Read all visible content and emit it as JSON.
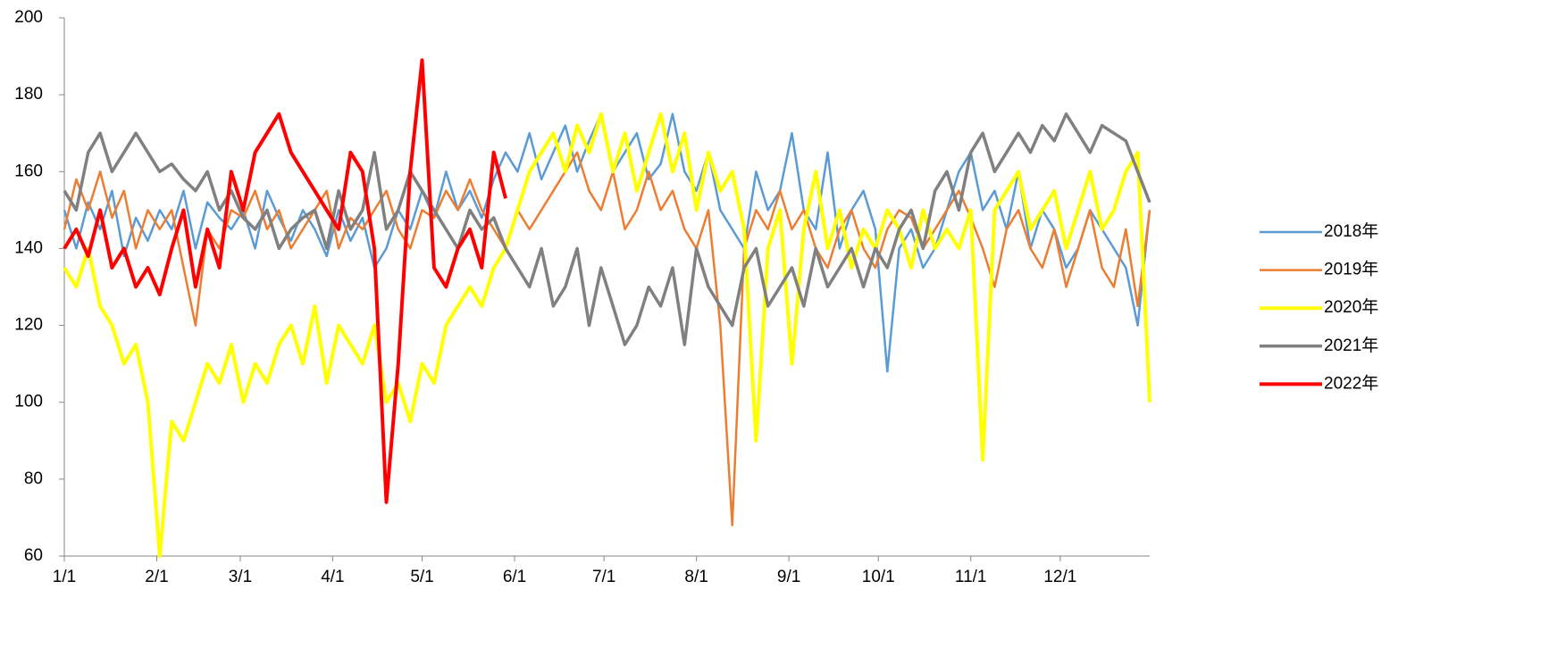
{
  "chart_data": {
    "type": "line",
    "x": [
      0,
      4,
      8,
      12,
      16,
      20,
      24,
      28,
      32,
      36,
      40,
      44,
      48,
      52,
      56,
      60,
      64,
      68,
      72,
      76,
      80,
      84,
      88,
      92,
      96,
      100,
      104,
      108,
      112,
      116,
      120,
      124,
      128,
      132,
      136,
      140,
      144,
      148,
      152,
      156,
      160,
      164,
      168,
      172,
      176,
      180,
      184,
      188,
      192,
      196,
      200,
      204,
      208,
      212,
      216,
      220,
      224,
      228,
      232,
      236,
      240,
      244,
      248,
      252,
      256,
      260,
      264,
      268,
      272,
      276,
      280,
      284,
      288,
      292,
      296,
      300,
      304,
      308,
      312,
      316,
      320,
      324,
      328,
      332,
      336,
      340,
      344,
      348,
      352,
      356,
      360,
      364
    ],
    "xlim": [
      0,
      364
    ],
    "xticks": [
      {
        "value": 0,
        "label": "1/1"
      },
      {
        "value": 31,
        "label": "2/1"
      },
      {
        "value": 59,
        "label": "3/1"
      },
      {
        "value": 90,
        "label": "4/1"
      },
      {
        "value": 120,
        "label": "5/1"
      },
      {
        "value": 151,
        "label": "6/1"
      },
      {
        "value": 181,
        "label": "7/1"
      },
      {
        "value": 212,
        "label": "8/1"
      },
      {
        "value": 243,
        "label": "9/1"
      },
      {
        "value": 273,
        "label": "10/1"
      },
      {
        "value": 304,
        "label": "11/1"
      },
      {
        "value": 334,
        "label": "12/1"
      }
    ],
    "ylim": [
      60,
      200
    ],
    "yticks": [
      60,
      80,
      100,
      120,
      140,
      160,
      180,
      200
    ],
    "legend": "right",
    "series": [
      {
        "name": "2018年",
        "color": "#5b9bd5",
        "values": [
          150,
          140,
          152,
          145,
          155,
          138,
          148,
          142,
          150,
          145,
          155,
          140,
          152,
          148,
          145,
          150,
          140,
          155,
          148,
          142,
          150,
          145,
          138,
          150,
          142,
          148,
          135,
          140,
          150,
          145,
          155,
          148,
          160,
          150,
          155,
          148,
          158,
          165,
          160,
          170,
          158,
          165,
          172,
          160,
          168,
          175,
          160,
          165,
          170,
          158,
          162,
          175,
          160,
          155,
          165,
          150,
          145,
          140,
          160,
          150,
          155,
          170,
          150,
          145,
          165,
          140,
          150,
          155,
          145,
          108,
          140,
          145,
          135,
          140,
          150,
          160,
          165,
          150,
          155,
          145,
          160,
          140,
          150,
          145,
          135,
          140,
          150,
          145,
          140,
          135,
          120,
          150
        ]
      },
      {
        "name": "2019年",
        "color": "#ed7d31",
        "values": [
          145,
          158,
          150,
          160,
          148,
          155,
          140,
          150,
          145,
          150,
          135,
          120,
          145,
          140,
          150,
          148,
          155,
          145,
          150,
          140,
          145,
          150,
          155,
          140,
          148,
          145,
          150,
          155,
          145,
          140,
          150,
          148,
          155,
          150,
          158,
          150,
          145,
          140,
          150,
          145,
          150,
          155,
          160,
          165,
          155,
          150,
          160,
          145,
          150,
          160,
          150,
          155,
          145,
          140,
          150,
          120,
          68,
          140,
          150,
          145,
          155,
          145,
          150,
          140,
          135,
          145,
          150,
          140,
          135,
          145,
          150,
          148,
          140,
          145,
          150,
          155,
          148,
          140,
          130,
          145,
          150,
          140,
          135,
          145,
          130,
          140,
          150,
          135,
          130,
          145,
          125,
          150
        ]
      },
      {
        "name": "2020年",
        "color": "#ffff00",
        "values": [
          135,
          130,
          140,
          125,
          120,
          110,
          115,
          100,
          60,
          95,
          90,
          100,
          110,
          105,
          115,
          100,
          110,
          105,
          115,
          120,
          110,
          125,
          105,
          120,
          115,
          110,
          120,
          100,
          105,
          95,
          110,
          105,
          120,
          125,
          130,
          125,
          135,
          140,
          150,
          160,
          165,
          170,
          160,
          172,
          165,
          175,
          160,
          170,
          155,
          165,
          175,
          160,
          170,
          150,
          165,
          155,
          160,
          145,
          90,
          140,
          150,
          110,
          145,
          160,
          140,
          150,
          135,
          145,
          140,
          150,
          145,
          135,
          150,
          140,
          145,
          140,
          150,
          85,
          150,
          155,
          160,
          145,
          150,
          155,
          140,
          150,
          160,
          145,
          150,
          160,
          165,
          100
        ]
      },
      {
        "name": "2021年",
        "color": "#808080",
        "values": [
          155,
          150,
          165,
          170,
          160,
          165,
          170,
          165,
          160,
          162,
          158,
          155,
          160,
          150,
          155,
          148,
          145,
          150,
          140,
          145,
          148,
          150,
          140,
          155,
          145,
          150,
          165,
          145,
          150,
          160,
          155,
          150,
          145,
          140,
          150,
          145,
          148,
          140,
          135,
          130,
          140,
          125,
          130,
          140,
          120,
          135,
          125,
          115,
          120,
          130,
          125,
          135,
          115,
          140,
          130,
          125,
          120,
          135,
          140,
          125,
          130,
          135,
          125,
          140,
          130,
          135,
          140,
          130,
          140,
          135,
          145,
          150,
          140,
          155,
          160,
          150,
          165,
          170,
          160,
          165,
          170,
          165,
          172,
          168,
          175,
          170,
          165,
          172,
          170,
          168,
          160,
          152
        ]
      },
      {
        "name": "2022年",
        "color": "#ff0000",
        "values": [
          140,
          145,
          138,
          150,
          135,
          140,
          130,
          135,
          128,
          140,
          150,
          130,
          145,
          135,
          160,
          150,
          165,
          170,
          175,
          165,
          160,
          155,
          150,
          145,
          165,
          160,
          140,
          74,
          110,
          160,
          189,
          135,
          130,
          140,
          145,
          135,
          165,
          153,
          null,
          null,
          null,
          null,
          null,
          null,
          null,
          null,
          null,
          null,
          null,
          null,
          null,
          null,
          null,
          null,
          null,
          null,
          null,
          null,
          null,
          null,
          null,
          null,
          null,
          null,
          null,
          null,
          null,
          null,
          null,
          null,
          null,
          null,
          null,
          null,
          null,
          null,
          null,
          null,
          null,
          null,
          null,
          null,
          null,
          null,
          null,
          null,
          null,
          null,
          null,
          null,
          null,
          null
        ]
      }
    ]
  }
}
